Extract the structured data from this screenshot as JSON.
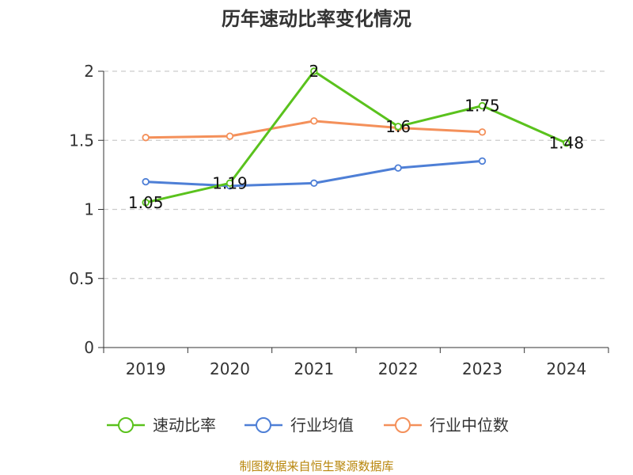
{
  "title": "历年速动比率变化情况",
  "source": "制图数据来自恒生聚源数据库",
  "chart_data": {
    "type": "line",
    "title": "历年速动比率变化情况",
    "categories": [
      "2019",
      "2020",
      "2021",
      "2022",
      "2023",
      "2024"
    ],
    "ylim": [
      0,
      2
    ],
    "yticks": [
      0,
      0.5,
      1,
      1.5,
      2
    ],
    "ytick_labels": [
      "0",
      "0.5",
      "1",
      "1.5",
      "2"
    ],
    "grid": true,
    "legend_position": "bottom",
    "series": [
      {
        "name": "速动比率",
        "color": "#5ac21d",
        "values": [
          1.05,
          1.19,
          2,
          1.6,
          1.75,
          1.48
        ],
        "labels": [
          "1.05",
          "1.19",
          "2",
          "1.6",
          "1.75",
          "1.48"
        ]
      },
      {
        "name": "行业均值",
        "color": "#4e7fd6",
        "values": [
          1.2,
          1.17,
          1.19,
          1.3,
          1.35,
          null
        ]
      },
      {
        "name": "行业中位数",
        "color": "#f4905a",
        "values": [
          1.52,
          1.53,
          1.64,
          1.59,
          1.56,
          null
        ]
      }
    ]
  }
}
